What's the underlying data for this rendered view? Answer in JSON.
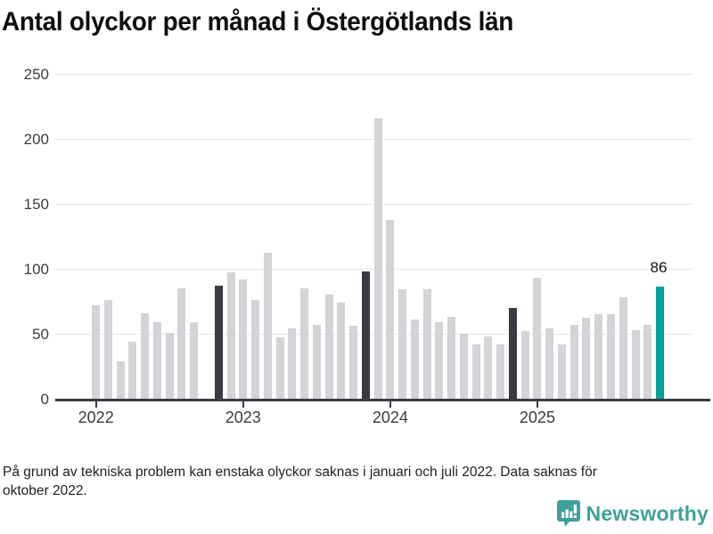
{
  "title": "Antal olyckor per månad i Östergötlands län",
  "footnote": {
    "line1": "På grund av tekniska problem kan enstaka olyckor saknas i januari och juli 2022. Data saknas för",
    "line2": "oktober 2022."
  },
  "logo": {
    "text": "Newsworthy"
  },
  "colors": {
    "bar_normal": "#d3d3d8",
    "bar_highlight": "#3a3a45",
    "bar_current": "#00a29a",
    "axis": "#3a3a45",
    "grid": "#e7e7ea",
    "tick_text": "#3c3c3c",
    "brand_teal": "#3fa19d"
  },
  "chart_data": {
    "type": "bar",
    "title": "Antal olyckor per månad i Östergötlands län",
    "xlabel": "",
    "ylabel": "",
    "ylim": [
      0,
      250
    ],
    "yticks": [
      0,
      50,
      100,
      150,
      200,
      250
    ],
    "grid": "horizontal",
    "legend": "none",
    "months": [
      "2022-01",
      "2022-02",
      "2022-03",
      "2022-04",
      "2022-05",
      "2022-06",
      "2022-07",
      "2022-08",
      "2022-09",
      "2022-10",
      "2022-11",
      "2022-12",
      "2023-01",
      "2023-02",
      "2023-03",
      "2023-04",
      "2023-05",
      "2023-06",
      "2023-07",
      "2023-08",
      "2023-09",
      "2023-10",
      "2023-11",
      "2023-12",
      "2024-01",
      "2024-02",
      "2024-03",
      "2024-04",
      "2024-05",
      "2024-06",
      "2024-07",
      "2024-08",
      "2024-09",
      "2024-10",
      "2024-11",
      "2024-12",
      "2025-01",
      "2025-02",
      "2025-03",
      "2025-04",
      "2025-05",
      "2025-06",
      "2025-07",
      "2025-08",
      "2025-09",
      "2025-10",
      "2025-11"
    ],
    "values": [
      72,
      76,
      29,
      44,
      66,
      59,
      51,
      85,
      59,
      null,
      87,
      97,
      92,
      76,
      112,
      47,
      54,
      85,
      57,
      80,
      74,
      56,
      98,
      216,
      138,
      84,
      61,
      84,
      59,
      63,
      50,
      42,
      48,
      42,
      70,
      52,
      93,
      54,
      42,
      57,
      62,
      65,
      65,
      78,
      53,
      57,
      86
    ],
    "highlight_indices": [
      10,
      22,
      34
    ],
    "current_index": 46,
    "annotation": {
      "text": "86",
      "index": 46
    },
    "xticks": [
      {
        "label": "2022",
        "month_index": 0
      },
      {
        "label": "2023",
        "month_index": 12
      },
      {
        "label": "2024",
        "month_index": 24
      },
      {
        "label": "2025",
        "month_index": 36
      }
    ],
    "missing_months": [
      "2022-10"
    ]
  }
}
